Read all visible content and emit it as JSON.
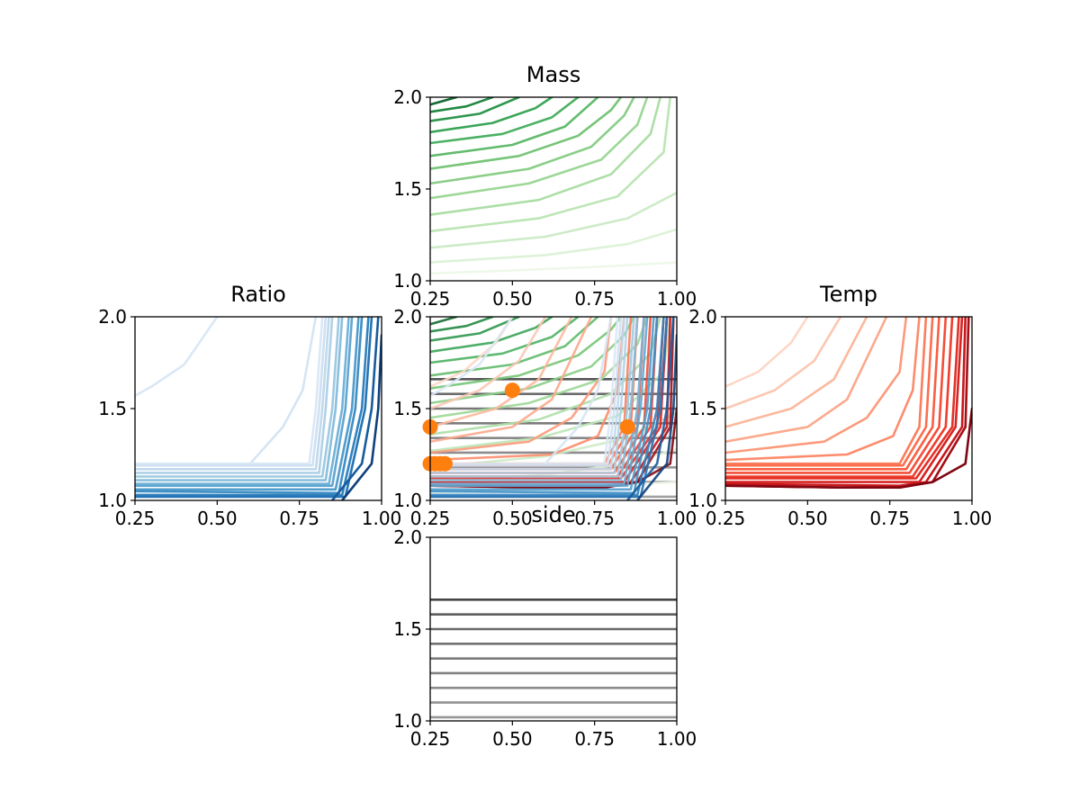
{
  "chart_data": [
    {
      "id": "mass",
      "type": "contour",
      "title": "Mass",
      "xlim": [
        0.25,
        1.0
      ],
      "ylim": [
        1.0,
        2.0
      ],
      "xticks": [
        "0.25",
        "0.50",
        "0.75",
        "1.00"
      ],
      "yticks": [
        "1.0",
        "1.5",
        "2.0"
      ],
      "colormap": "Greens",
      "levels": [
        {
          "c": 0.0,
          "points": [
            [
              0.25,
              1.04
            ],
            [
              0.55,
              1.06
            ],
            [
              0.8,
              1.08
            ],
            [
              1.0,
              1.1
            ]
          ]
        },
        {
          "c": 0.07,
          "points": [
            [
              0.25,
              1.1
            ],
            [
              0.6,
              1.14
            ],
            [
              0.85,
              1.2
            ],
            [
              1.0,
              1.28
            ]
          ]
        },
        {
          "c": 0.14,
          "points": [
            [
              0.25,
              1.18
            ],
            [
              0.6,
              1.24
            ],
            [
              0.85,
              1.34
            ],
            [
              1.0,
              1.48
            ]
          ]
        },
        {
          "c": 0.21,
          "points": [
            [
              0.25,
              1.27
            ],
            [
              0.58,
              1.34
            ],
            [
              0.82,
              1.46
            ],
            [
              0.96,
              1.7
            ],
            [
              0.98,
              2.0
            ]
          ]
        },
        {
          "c": 0.28,
          "points": [
            [
              0.25,
              1.36
            ],
            [
              0.58,
              1.44
            ],
            [
              0.8,
              1.58
            ],
            [
              0.92,
              1.8
            ],
            [
              0.95,
              2.0
            ]
          ]
        },
        {
          "c": 0.35,
          "points": [
            [
              0.25,
              1.45
            ],
            [
              0.55,
              1.53
            ],
            [
              0.77,
              1.66
            ],
            [
              0.88,
              1.85
            ],
            [
              0.91,
              2.0
            ]
          ]
        },
        {
          "c": 0.42,
          "points": [
            [
              0.25,
              1.53
            ],
            [
              0.55,
              1.61
            ],
            [
              0.74,
              1.73
            ],
            [
              0.84,
              1.9
            ],
            [
              0.87,
              2.0
            ]
          ]
        },
        {
          "c": 0.49,
          "points": [
            [
              0.25,
              1.61
            ],
            [
              0.52,
              1.68
            ],
            [
              0.7,
              1.79
            ],
            [
              0.8,
              1.93
            ],
            [
              0.83,
              2.0
            ]
          ]
        },
        {
          "c": 0.56,
          "points": [
            [
              0.25,
              1.68
            ],
            [
              0.5,
              1.74
            ],
            [
              0.66,
              1.84
            ],
            [
              0.76,
              2.0
            ]
          ]
        },
        {
          "c": 0.63,
          "points": [
            [
              0.25,
              1.75
            ],
            [
              0.47,
              1.8
            ],
            [
              0.62,
              1.89
            ],
            [
              0.7,
              2.0
            ]
          ]
        },
        {
          "c": 0.7,
          "points": [
            [
              0.25,
              1.81
            ],
            [
              0.44,
              1.86
            ],
            [
              0.57,
              1.94
            ],
            [
              0.62,
              2.0
            ]
          ]
        },
        {
          "c": 0.77,
          "points": [
            [
              0.25,
              1.87
            ],
            [
              0.4,
              1.91
            ],
            [
              0.52,
              2.0
            ]
          ]
        },
        {
          "c": 0.84,
          "points": [
            [
              0.25,
              1.92
            ],
            [
              0.36,
              1.95
            ],
            [
              0.44,
              2.0
            ]
          ]
        },
        {
          "c": 0.91,
          "points": [
            [
              0.25,
              1.96
            ],
            [
              0.33,
              2.0
            ]
          ]
        }
      ]
    },
    {
      "id": "ratio",
      "type": "contour",
      "title": "Ratio",
      "xlim": [
        0.25,
        1.0
      ],
      "ylim": [
        1.0,
        2.0
      ],
      "xticks": [
        "0.25",
        "0.50",
        "0.75",
        "1.00"
      ],
      "yticks": [
        "1.0",
        "1.5",
        "2.0"
      ],
      "colormap": "Blues",
      "levels": [
        {
          "c": 0.05,
          "points": [
            [
              0.25,
              1.57
            ],
            [
              0.3,
              1.62
            ],
            [
              0.4,
              1.74
            ],
            [
              0.5,
              2.0
            ]
          ]
        },
        {
          "c": 0.08,
          "points": [
            [
              0.6,
              1.2
            ],
            [
              0.7,
              1.4
            ],
            [
              0.76,
              1.6
            ],
            [
              0.8,
              2.0
            ]
          ]
        },
        {
          "c": 0.05,
          "points": [
            [
              0.25,
              1.2
            ],
            [
              0.78,
              1.2
            ],
            [
              0.8,
              1.5
            ],
            [
              0.82,
              2.0
            ]
          ]
        },
        {
          "c": 0.12,
          "points": [
            [
              0.25,
              1.19
            ],
            [
              0.79,
              1.19
            ],
            [
              0.81,
              1.5
            ],
            [
              0.83,
              2.0
            ]
          ]
        },
        {
          "c": 0.19,
          "points": [
            [
              0.25,
              1.17
            ],
            [
              0.8,
              1.17
            ],
            [
              0.82,
              1.5
            ],
            [
              0.84,
              2.0
            ]
          ]
        },
        {
          "c": 0.26,
          "points": [
            [
              0.25,
              1.15
            ],
            [
              0.81,
              1.15
            ],
            [
              0.83,
              1.5
            ],
            [
              0.85,
              2.0
            ]
          ]
        },
        {
          "c": 0.33,
          "points": [
            [
              0.25,
              1.13
            ],
            [
              0.82,
              1.13
            ],
            [
              0.85,
              1.5
            ],
            [
              0.87,
              2.0
            ]
          ]
        },
        {
          "c": 0.4,
          "points": [
            [
              0.25,
              1.11
            ],
            [
              0.83,
              1.11
            ],
            [
              0.86,
              1.5
            ],
            [
              0.88,
              2.0
            ]
          ]
        },
        {
          "c": 0.47,
          "points": [
            [
              0.25,
              1.09
            ],
            [
              0.84,
              1.09
            ],
            [
              0.88,
              1.5
            ],
            [
              0.9,
              2.0
            ]
          ]
        },
        {
          "c": 0.54,
          "points": [
            [
              0.25,
              1.08
            ],
            [
              0.85,
              1.08
            ],
            [
              0.89,
              1.5
            ],
            [
              0.91,
              2.0
            ]
          ]
        },
        {
          "c": 0.61,
          "points": [
            [
              0.25,
              1.06
            ],
            [
              0.86,
              1.06
            ],
            [
              0.91,
              1.5
            ],
            [
              0.93,
              2.0
            ]
          ]
        },
        {
          "c": 0.68,
          "points": [
            [
              0.25,
              1.05
            ],
            [
              0.87,
              1.04
            ],
            [
              0.92,
              1.5
            ],
            [
              0.94,
              2.0
            ]
          ]
        },
        {
          "c": 0.75,
          "points": [
            [
              0.25,
              1.03
            ],
            [
              0.88,
              1.03
            ],
            [
              0.94,
              1.5
            ],
            [
              0.96,
              2.0
            ]
          ]
        },
        {
          "c": 0.82,
          "points": [
            [
              0.25,
              1.02
            ],
            [
              0.89,
              1.02
            ],
            [
              0.95,
              1.5
            ],
            [
              0.97,
              2.0
            ]
          ]
        },
        {
          "c": 0.89,
          "points": [
            [
              0.85,
              1.0
            ],
            [
              0.94,
              1.2
            ],
            [
              0.97,
              1.5
            ],
            [
              0.99,
              2.0
            ]
          ]
        },
        {
          "c": 0.96,
          "points": [
            [
              0.88,
              1.0
            ],
            [
              0.97,
              1.2
            ],
            [
              0.99,
              1.5
            ],
            [
              1.0,
              1.9
            ]
          ]
        }
      ]
    },
    {
      "id": "combined",
      "type": "contour+scatter",
      "title": "",
      "xlim": [
        0.25,
        1.0
      ],
      "ylim": [
        1.0,
        2.0
      ],
      "xticks": [
        "0.25",
        "0.50",
        "0.75",
        "1.00"
      ],
      "yticks": [
        "1.0",
        "1.5",
        "2.0"
      ],
      "points": {
        "color": "#ff7f0e",
        "xy": [
          [
            0.25,
            1.2
          ],
          [
            0.265,
            1.2
          ],
          [
            0.28,
            1.2
          ],
          [
            0.295,
            1.2
          ],
          [
            0.25,
            1.4
          ],
          [
            0.5,
            1.6
          ],
          [
            0.85,
            1.4
          ]
        ]
      }
    },
    {
      "id": "temp",
      "type": "contour",
      "title": "Temp",
      "xlim": [
        0.25,
        1.0
      ],
      "ylim": [
        1.0,
        2.0
      ],
      "xticks": [
        "0.25",
        "0.50",
        "0.75",
        "1.00"
      ],
      "yticks": [
        "1.0",
        "1.5",
        "2.0"
      ],
      "colormap": "Reds",
      "levels": [
        {
          "c": 0.06,
          "points": [
            [
              0.25,
              1.62
            ],
            [
              0.35,
              1.7
            ],
            [
              0.45,
              1.86
            ],
            [
              0.5,
              2.0
            ]
          ]
        },
        {
          "c": 0.12,
          "points": [
            [
              0.25,
              1.5
            ],
            [
              0.4,
              1.6
            ],
            [
              0.52,
              1.76
            ],
            [
              0.6,
              2.0
            ]
          ]
        },
        {
          "c": 0.18,
          "points": [
            [
              0.25,
              1.4
            ],
            [
              0.45,
              1.5
            ],
            [
              0.58,
              1.66
            ],
            [
              0.68,
              2.0
            ]
          ]
        },
        {
          "c": 0.24,
          "points": [
            [
              0.25,
              1.32
            ],
            [
              0.5,
              1.4
            ],
            [
              0.62,
              1.55
            ],
            [
              0.74,
              2.0
            ]
          ]
        },
        {
          "c": 0.3,
          "points": [
            [
              0.25,
              1.26
            ],
            [
              0.55,
              1.32
            ],
            [
              0.68,
              1.45
            ],
            [
              0.78,
              1.7
            ],
            [
              0.8,
              2.0
            ]
          ]
        },
        {
          "c": 0.36,
          "points": [
            [
              0.25,
              1.22
            ],
            [
              0.62,
              1.25
            ],
            [
              0.76,
              1.35
            ],
            [
              0.82,
              1.6
            ],
            [
              0.84,
              2.0
            ]
          ]
        },
        {
          "c": 0.42,
          "points": [
            [
              0.25,
              1.2
            ],
            [
              0.78,
              1.2
            ],
            [
              0.84,
              1.4
            ],
            [
              0.86,
              2.0
            ]
          ]
        },
        {
          "c": 0.48,
          "points": [
            [
              0.25,
              1.19
            ],
            [
              0.79,
              1.19
            ],
            [
              0.86,
              1.4
            ],
            [
              0.88,
              2.0
            ]
          ]
        },
        {
          "c": 0.54,
          "points": [
            [
              0.25,
              1.17
            ],
            [
              0.8,
              1.17
            ],
            [
              0.88,
              1.4
            ],
            [
              0.9,
              2.0
            ]
          ]
        },
        {
          "c": 0.6,
          "points": [
            [
              0.25,
              1.15
            ],
            [
              0.81,
              1.15
            ],
            [
              0.9,
              1.4
            ],
            [
              0.92,
              2.0
            ]
          ]
        },
        {
          "c": 0.66,
          "points": [
            [
              0.25,
              1.13
            ],
            [
              0.82,
              1.13
            ],
            [
              0.92,
              1.4
            ],
            [
              0.94,
              2.0
            ]
          ]
        },
        {
          "c": 0.72,
          "points": [
            [
              0.25,
              1.12
            ],
            [
              0.83,
              1.12
            ],
            [
              0.94,
              1.4
            ],
            [
              0.96,
              2.0
            ]
          ]
        },
        {
          "c": 0.78,
          "points": [
            [
              0.25,
              1.1
            ],
            [
              0.84,
              1.1
            ],
            [
              0.95,
              1.4
            ],
            [
              0.97,
              2.0
            ]
          ]
        },
        {
          "c": 0.84,
          "points": [
            [
              0.25,
              1.09
            ],
            [
              0.78,
              1.08
            ],
            [
              0.86,
              1.1
            ],
            [
              0.97,
              1.4
            ],
            [
              0.98,
              2.0
            ]
          ]
        },
        {
          "c": 0.9,
          "points": [
            [
              0.25,
              1.08
            ],
            [
              0.6,
              1.07
            ],
            [
              0.78,
              1.07
            ],
            [
              0.88,
              1.1
            ],
            [
              0.98,
              1.4
            ],
            [
              0.99,
              2.0
            ]
          ]
        },
        {
          "c": 0.96,
          "points": [
            [
              0.25,
              1.08
            ],
            [
              0.6,
              1.07
            ],
            [
              0.78,
              1.07
            ],
            [
              0.88,
              1.1
            ],
            [
              0.98,
              1.2
            ],
            [
              1.0,
              1.5
            ]
          ]
        }
      ]
    },
    {
      "id": "side",
      "type": "contour",
      "title": "side",
      "xlim": [
        0.25,
        1.0
      ],
      "ylim": [
        1.0,
        2.0
      ],
      "xticks": [
        "0.25",
        "0.50",
        "0.75",
        "1.00"
      ],
      "yticks": [
        "1.0",
        "1.5",
        "2.0"
      ],
      "colormap": "Greys",
      "levels": [
        {
          "c": 0.5,
          "y": 1.02
        },
        {
          "c": 0.52,
          "y": 1.1
        },
        {
          "c": 0.55,
          "y": 1.18
        },
        {
          "c": 0.6,
          "y": 1.26
        },
        {
          "c": 0.63,
          "y": 1.34
        },
        {
          "c": 0.68,
          "y": 1.42
        },
        {
          "c": 0.72,
          "y": 1.5
        },
        {
          "c": 0.78,
          "y": 1.58
        },
        {
          "c": 0.86,
          "y": 1.66
        }
      ]
    }
  ]
}
